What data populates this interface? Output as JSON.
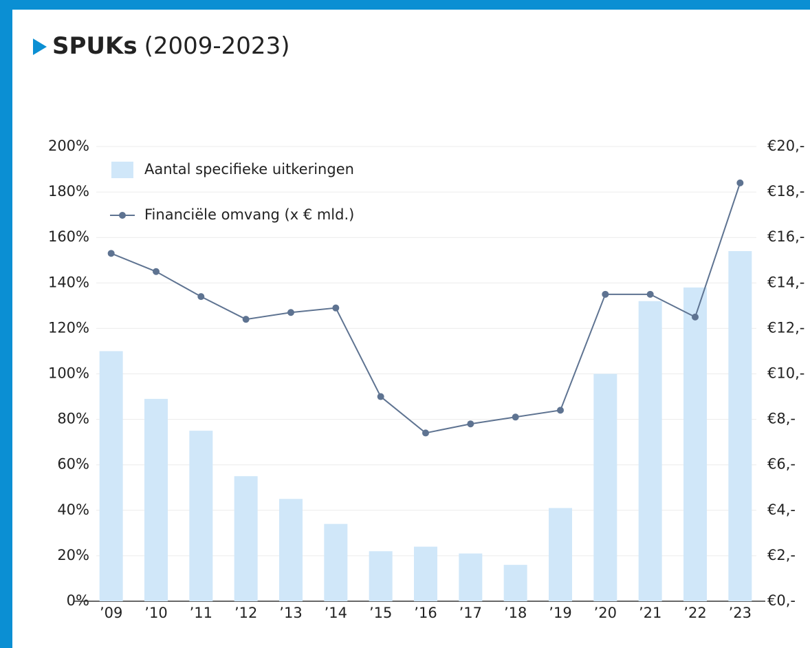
{
  "chart_data": {
    "type": "bar",
    "title": "SPUKs",
    "subtitle": "(2009-2023)",
    "categories": [
      "’09",
      "’10",
      "’11",
      "’12",
      "’13",
      "’14",
      "’15",
      "’16",
      "’17",
      "’18",
      "’19",
      "’20",
      "’21",
      "’22",
      "’23"
    ],
    "series": [
      {
        "name": "Aantal specifieke uitkeringen",
        "type": "bar",
        "color": "#d0e7f9",
        "values": [
          110,
          89,
          75,
          55,
          45,
          34,
          22,
          24,
          21,
          16,
          41,
          100,
          132,
          138,
          154
        ]
      },
      {
        "name": "Financiële omvang (x € mld.)",
        "type": "line",
        "axis": "y2",
        "color": "#5e7391",
        "values": [
          15.3,
          14.5,
          13.4,
          12.4,
          12.7,
          12.9,
          9.0,
          7.4,
          7.8,
          8.1,
          8.4,
          13.5,
          13.5,
          12.5,
          18.4
        ]
      }
    ],
    "ylim": [
      0,
      200
    ],
    "yticks": [
      {
        "value": 0,
        "label": "0%"
      },
      {
        "value": 20,
        "label": "20%"
      },
      {
        "value": 40,
        "label": "40%"
      },
      {
        "value": 60,
        "label": "60%"
      },
      {
        "value": 80,
        "label": "80%"
      },
      {
        "value": 100,
        "label": "100%"
      },
      {
        "value": 120,
        "label": "120%"
      },
      {
        "value": 140,
        "label": "140%"
      },
      {
        "value": 160,
        "label": "160%"
      },
      {
        "value": 180,
        "label": "180%"
      },
      {
        "value": 200,
        "label": "200%"
      }
    ],
    "y2lim": [
      0,
      20
    ],
    "y2ticks": [
      {
        "value": 0,
        "label": "€0,-"
      },
      {
        "value": 2,
        "label": "€2,-"
      },
      {
        "value": 4,
        "label": "€4,-"
      },
      {
        "value": 6,
        "label": "€6,-"
      },
      {
        "value": 8,
        "label": "€8,-"
      },
      {
        "value": 10,
        "label": "€10,-"
      },
      {
        "value": 12,
        "label": "€12,-"
      },
      {
        "value": 14,
        "label": "€14,-"
      },
      {
        "value": 16,
        "label": "€16,-"
      },
      {
        "value": 18,
        "label": "€18,-"
      },
      {
        "value": 20,
        "label": "€20,-"
      }
    ],
    "grid": true,
    "legend": "top-left"
  }
}
